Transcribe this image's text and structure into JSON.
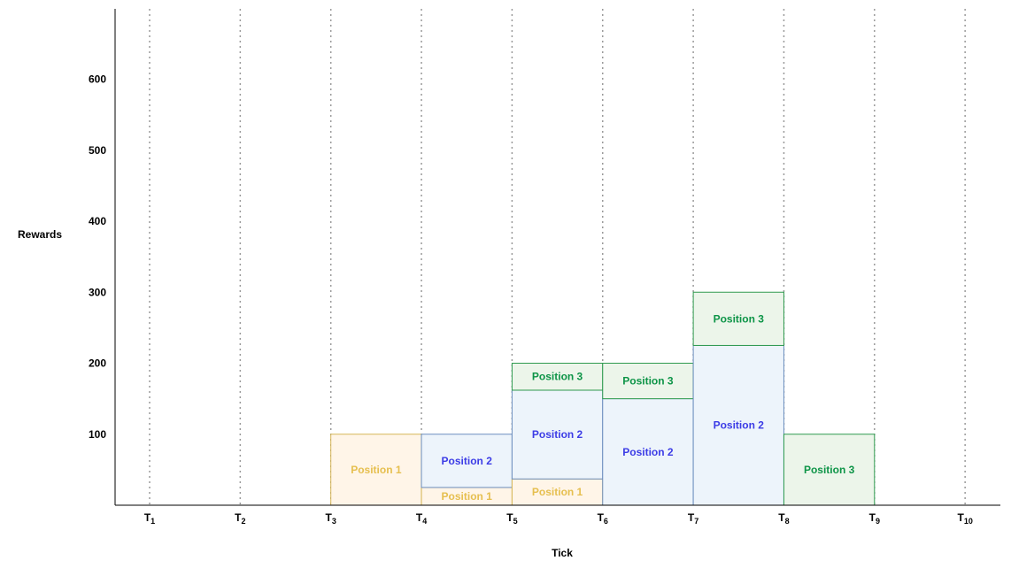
{
  "chart_data": {
    "type": "bar",
    "stacked": true,
    "xlabel": "Tick",
    "ylabel": "Rewards",
    "ylim": [
      0,
      700
    ],
    "yticks": [
      100,
      200,
      300,
      400,
      500,
      600
    ],
    "grid": {
      "vertical_dotted": true,
      "horizontal": false
    },
    "ticks": [
      {
        "base": "T",
        "sub": "1"
      },
      {
        "base": "T",
        "sub": "2"
      },
      {
        "base": "T",
        "sub": "3"
      },
      {
        "base": "T",
        "sub": "4"
      },
      {
        "base": "T",
        "sub": "5"
      },
      {
        "base": "T",
        "sub": "6"
      },
      {
        "base": "T",
        "sub": "7"
      },
      {
        "base": "T",
        "sub": "8"
      },
      {
        "base": "T",
        "sub": "9"
      },
      {
        "base": "T",
        "sub": "10"
      }
    ],
    "positions": {
      "Position 1": {
        "stroke": "#d6b656",
        "fill": "#fff5e8",
        "text": "#e6bf4f"
      },
      "Position 2": {
        "stroke": "#6c8ebf",
        "fill": "#edf4fb",
        "text": "#3c3ce6"
      },
      "Position 3": {
        "stroke": "#2e9a4e",
        "fill": "#ecf5ea",
        "text": "#0d9447"
      }
    },
    "intervals": [
      {
        "from": 3,
        "to": 4,
        "segments": [
          {
            "name": "Position 1",
            "label": "Position 1",
            "value": 100
          }
        ]
      },
      {
        "from": 4,
        "to": 5,
        "segments": [
          {
            "name": "Position 1",
            "label": "Position 1",
            "value": 25
          },
          {
            "name": "Position 2",
            "label": "Position 2",
            "value": 75
          }
        ]
      },
      {
        "from": 5,
        "to": 6,
        "segments": [
          {
            "name": "Position 1",
            "label": "Position 1",
            "value": 37
          },
          {
            "name": "Position 2",
            "label": "Position 2",
            "value": 125
          },
          {
            "name": "Position 3",
            "label": "Position 3",
            "value": 38
          }
        ]
      },
      {
        "from": 6,
        "to": 7,
        "segments": [
          {
            "name": "Position 2",
            "label": "Position 2",
            "value": 150
          },
          {
            "name": "Position 3",
            "label": "Position 3",
            "value": 50
          }
        ]
      },
      {
        "from": 7,
        "to": 8,
        "segments": [
          {
            "name": "Position 2",
            "label": "Position 2",
            "value": 225
          },
          {
            "name": "Position 3",
            "label": "Position 3",
            "value": 75
          }
        ]
      },
      {
        "from": 8,
        "to": 9,
        "segments": [
          {
            "name": "Position 3",
            "label": "Position 3",
            "value": 100
          }
        ]
      }
    ]
  }
}
